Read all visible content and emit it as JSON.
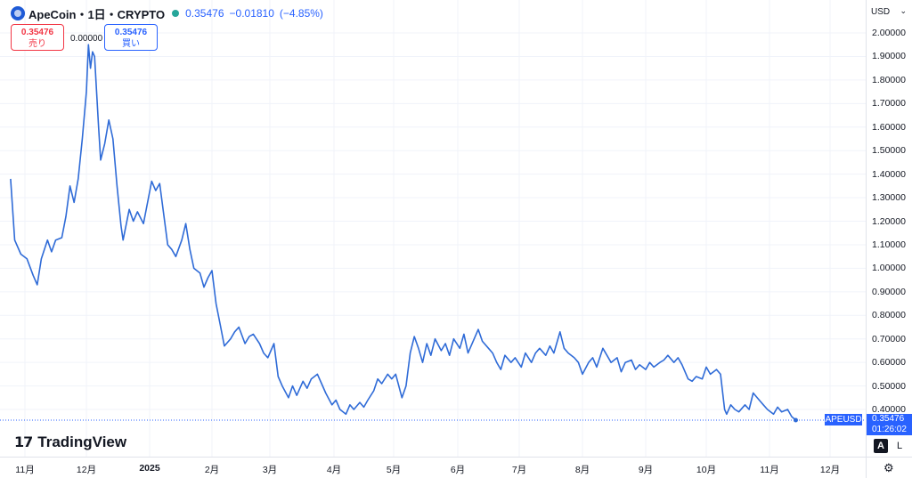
{
  "header": {
    "symbol": "ApeCoin・1日・CRYPTO",
    "last": "0.35476",
    "change": "−0.01810",
    "change_pct": "(−4.85%)"
  },
  "trade": {
    "sell_price": "0.35476",
    "sell_label": "売り",
    "spread": "0.00000",
    "buy_price": "0.35476",
    "buy_label": "買い"
  },
  "currency": "USD",
  "price_tag": {
    "symbol": "APEUSD",
    "price": "0.35476",
    "countdown": "01:26:02"
  },
  "brand": {
    "name": "TradingView"
  },
  "scale_buttons": {
    "auto": "A",
    "log": "L"
  },
  "colors": {
    "line": "#2f6bd7",
    "accent": "#2962ff",
    "down": "#f23645",
    "grid": "#f0f3fa"
  },
  "chart_data": {
    "type": "line",
    "title": "",
    "xlabel": "",
    "ylabel": "",
    "ylim": [
      0.33,
      2.05
    ],
    "grid": true,
    "y_ticks": [
      "2.00000",
      "1.90000",
      "1.80000",
      "1.70000",
      "1.60000",
      "1.50000",
      "1.40000",
      "1.30000",
      "1.20000",
      "1.10000",
      "1.00000",
      "0.90000",
      "0.80000",
      "0.70000",
      "0.60000",
      "0.50000",
      "0.40000"
    ],
    "x_ticks": [
      "11月",
      "12月",
      "2025",
      "2月",
      "3月",
      "4月",
      "5月",
      "6月",
      "7月",
      "8月",
      "9月",
      "10月",
      "11月",
      "12月"
    ],
    "series": [
      {
        "points": [
          [
            "2024-10-25",
            1.38
          ],
          [
            "2024-10-27",
            1.12
          ],
          [
            "2024-10-30",
            1.06
          ],
          [
            "2024-11-02",
            1.04
          ],
          [
            "2024-11-05",
            0.97
          ],
          [
            "2024-11-07",
            0.93
          ],
          [
            "2024-11-09",
            1.04
          ],
          [
            "2024-11-12",
            1.12
          ],
          [
            "2024-11-14",
            1.07
          ],
          [
            "2024-11-16",
            1.12
          ],
          [
            "2024-11-19",
            1.13
          ],
          [
            "2024-11-21",
            1.22
          ],
          [
            "2024-11-23",
            1.35
          ],
          [
            "2024-11-25",
            1.28
          ],
          [
            "2024-11-27",
            1.38
          ],
          [
            "2024-11-29",
            1.55
          ],
          [
            "2024-12-01",
            1.75
          ],
          [
            "2024-12-02",
            1.95
          ],
          [
            "2024-12-03",
            1.85
          ],
          [
            "2024-12-04",
            1.92
          ],
          [
            "2024-12-05",
            1.9
          ],
          [
            "2024-12-07",
            1.6
          ],
          [
            "2024-12-08",
            1.46
          ],
          [
            "2024-12-10",
            1.53
          ],
          [
            "2024-12-12",
            1.63
          ],
          [
            "2024-12-14",
            1.55
          ],
          [
            "2024-12-16",
            1.35
          ],
          [
            "2024-12-18",
            1.18
          ],
          [
            "2024-12-19",
            1.12
          ],
          [
            "2024-12-22",
            1.25
          ],
          [
            "2024-12-24",
            1.2
          ],
          [
            "2024-12-26",
            1.24
          ],
          [
            "2024-12-29",
            1.19
          ],
          [
            "2024-12-31",
            1.28
          ],
          [
            "2025-01-02",
            1.37
          ],
          [
            "2025-01-04",
            1.33
          ],
          [
            "2025-01-06",
            1.36
          ],
          [
            "2025-01-08",
            1.23
          ],
          [
            "2025-01-10",
            1.1
          ],
          [
            "2025-01-12",
            1.08
          ],
          [
            "2025-01-14",
            1.05
          ],
          [
            "2025-01-17",
            1.12
          ],
          [
            "2025-01-19",
            1.19
          ],
          [
            "2025-01-21",
            1.08
          ],
          [
            "2025-01-23",
            1.0
          ],
          [
            "2025-01-26",
            0.98
          ],
          [
            "2025-01-28",
            0.92
          ],
          [
            "2025-01-30",
            0.96
          ],
          [
            "2025-02-01",
            0.99
          ],
          [
            "2025-02-03",
            0.85
          ],
          [
            "2025-02-05",
            0.76
          ],
          [
            "2025-02-07",
            0.67
          ],
          [
            "2025-02-10",
            0.7
          ],
          [
            "2025-02-12",
            0.73
          ],
          [
            "2025-02-14",
            0.75
          ],
          [
            "2025-02-17",
            0.68
          ],
          [
            "2025-02-19",
            0.71
          ],
          [
            "2025-02-21",
            0.72
          ],
          [
            "2025-02-24",
            0.68
          ],
          [
            "2025-02-26",
            0.64
          ],
          [
            "2025-02-28",
            0.62
          ],
          [
            "2025-03-03",
            0.68
          ],
          [
            "2025-03-05",
            0.54
          ],
          [
            "2025-03-07",
            0.5
          ],
          [
            "2025-03-10",
            0.45
          ],
          [
            "2025-03-12",
            0.5
          ],
          [
            "2025-03-14",
            0.46
          ],
          [
            "2025-03-17",
            0.52
          ],
          [
            "2025-03-19",
            0.49
          ],
          [
            "2025-03-21",
            0.53
          ],
          [
            "2025-03-24",
            0.55
          ],
          [
            "2025-03-26",
            0.51
          ],
          [
            "2025-03-28",
            0.47
          ],
          [
            "2025-03-31",
            0.42
          ],
          [
            "2025-04-02",
            0.44
          ],
          [
            "2025-04-04",
            0.4
          ],
          [
            "2025-04-07",
            0.38
          ],
          [
            "2025-04-09",
            0.42
          ],
          [
            "2025-04-11",
            0.4
          ],
          [
            "2025-04-14",
            0.43
          ],
          [
            "2025-04-16",
            0.41
          ],
          [
            "2025-04-18",
            0.44
          ],
          [
            "2025-04-21",
            0.48
          ],
          [
            "2025-04-23",
            0.53
          ],
          [
            "2025-04-25",
            0.51
          ],
          [
            "2025-04-28",
            0.55
          ],
          [
            "2025-04-30",
            0.53
          ],
          [
            "2025-05-02",
            0.55
          ],
          [
            "2025-05-05",
            0.45
          ],
          [
            "2025-05-07",
            0.5
          ],
          [
            "2025-05-09",
            0.64
          ],
          [
            "2025-05-11",
            0.71
          ],
          [
            "2025-05-13",
            0.66
          ],
          [
            "2025-05-15",
            0.6
          ],
          [
            "2025-05-17",
            0.68
          ],
          [
            "2025-05-19",
            0.63
          ],
          [
            "2025-05-21",
            0.7
          ],
          [
            "2025-05-24",
            0.65
          ],
          [
            "2025-05-26",
            0.68
          ],
          [
            "2025-05-28",
            0.63
          ],
          [
            "2025-05-30",
            0.7
          ],
          [
            "2025-06-02",
            0.66
          ],
          [
            "2025-06-04",
            0.72
          ],
          [
            "2025-06-06",
            0.64
          ],
          [
            "2025-06-09",
            0.7
          ],
          [
            "2025-06-11",
            0.74
          ],
          [
            "2025-06-13",
            0.69
          ],
          [
            "2025-06-16",
            0.66
          ],
          [
            "2025-06-18",
            0.64
          ],
          [
            "2025-06-20",
            0.6
          ],
          [
            "2025-06-22",
            0.57
          ],
          [
            "2025-06-24",
            0.63
          ],
          [
            "2025-06-27",
            0.6
          ],
          [
            "2025-06-29",
            0.62
          ],
          [
            "2025-07-02",
            0.58
          ],
          [
            "2025-07-04",
            0.64
          ],
          [
            "2025-07-07",
            0.6
          ],
          [
            "2025-07-09",
            0.64
          ],
          [
            "2025-07-11",
            0.66
          ],
          [
            "2025-07-14",
            0.63
          ],
          [
            "2025-07-16",
            0.67
          ],
          [
            "2025-07-18",
            0.64
          ],
          [
            "2025-07-21",
            0.73
          ],
          [
            "2025-07-23",
            0.66
          ],
          [
            "2025-07-25",
            0.64
          ],
          [
            "2025-07-28",
            0.62
          ],
          [
            "2025-07-30",
            0.6
          ],
          [
            "2025-08-01",
            0.55
          ],
          [
            "2025-08-04",
            0.6
          ],
          [
            "2025-08-06",
            0.62
          ],
          [
            "2025-08-08",
            0.58
          ],
          [
            "2025-08-11",
            0.66
          ],
          [
            "2025-08-13",
            0.63
          ],
          [
            "2025-08-15",
            0.6
          ],
          [
            "2025-08-18",
            0.62
          ],
          [
            "2025-08-20",
            0.56
          ],
          [
            "2025-08-22",
            0.6
          ],
          [
            "2025-08-25",
            0.61
          ],
          [
            "2025-08-27",
            0.57
          ],
          [
            "2025-08-29",
            0.59
          ],
          [
            "2025-09-01",
            0.57
          ],
          [
            "2025-09-03",
            0.6
          ],
          [
            "2025-09-05",
            0.58
          ],
          [
            "2025-09-08",
            0.6
          ],
          [
            "2025-09-10",
            0.61
          ],
          [
            "2025-09-12",
            0.63
          ],
          [
            "2025-09-15",
            0.6
          ],
          [
            "2025-09-17",
            0.62
          ],
          [
            "2025-09-19",
            0.59
          ],
          [
            "2025-09-22",
            0.53
          ],
          [
            "2025-09-24",
            0.52
          ],
          [
            "2025-09-26",
            0.54
          ],
          [
            "2025-09-29",
            0.53
          ],
          [
            "2025-10-01",
            0.58
          ],
          [
            "2025-10-03",
            0.55
          ],
          [
            "2025-10-06",
            0.57
          ],
          [
            "2025-10-08",
            0.55
          ],
          [
            "2025-10-10",
            0.4
          ],
          [
            "2025-10-11",
            0.38
          ],
          [
            "2025-10-13",
            0.42
          ],
          [
            "2025-10-15",
            0.4
          ],
          [
            "2025-10-17",
            0.39
          ],
          [
            "2025-10-20",
            0.42
          ],
          [
            "2025-10-22",
            0.4
          ],
          [
            "2025-10-24",
            0.47
          ],
          [
            "2025-10-27",
            0.44
          ],
          [
            "2025-10-29",
            0.42
          ],
          [
            "2025-10-31",
            0.4
          ],
          [
            "2025-11-03",
            0.38
          ],
          [
            "2025-11-05",
            0.41
          ],
          [
            "2025-11-07",
            0.39
          ],
          [
            "2025-11-10",
            0.4
          ],
          [
            "2025-11-12",
            0.37
          ],
          [
            "2025-11-14",
            0.35476
          ]
        ]
      }
    ],
    "last_price": 0.35476
  }
}
